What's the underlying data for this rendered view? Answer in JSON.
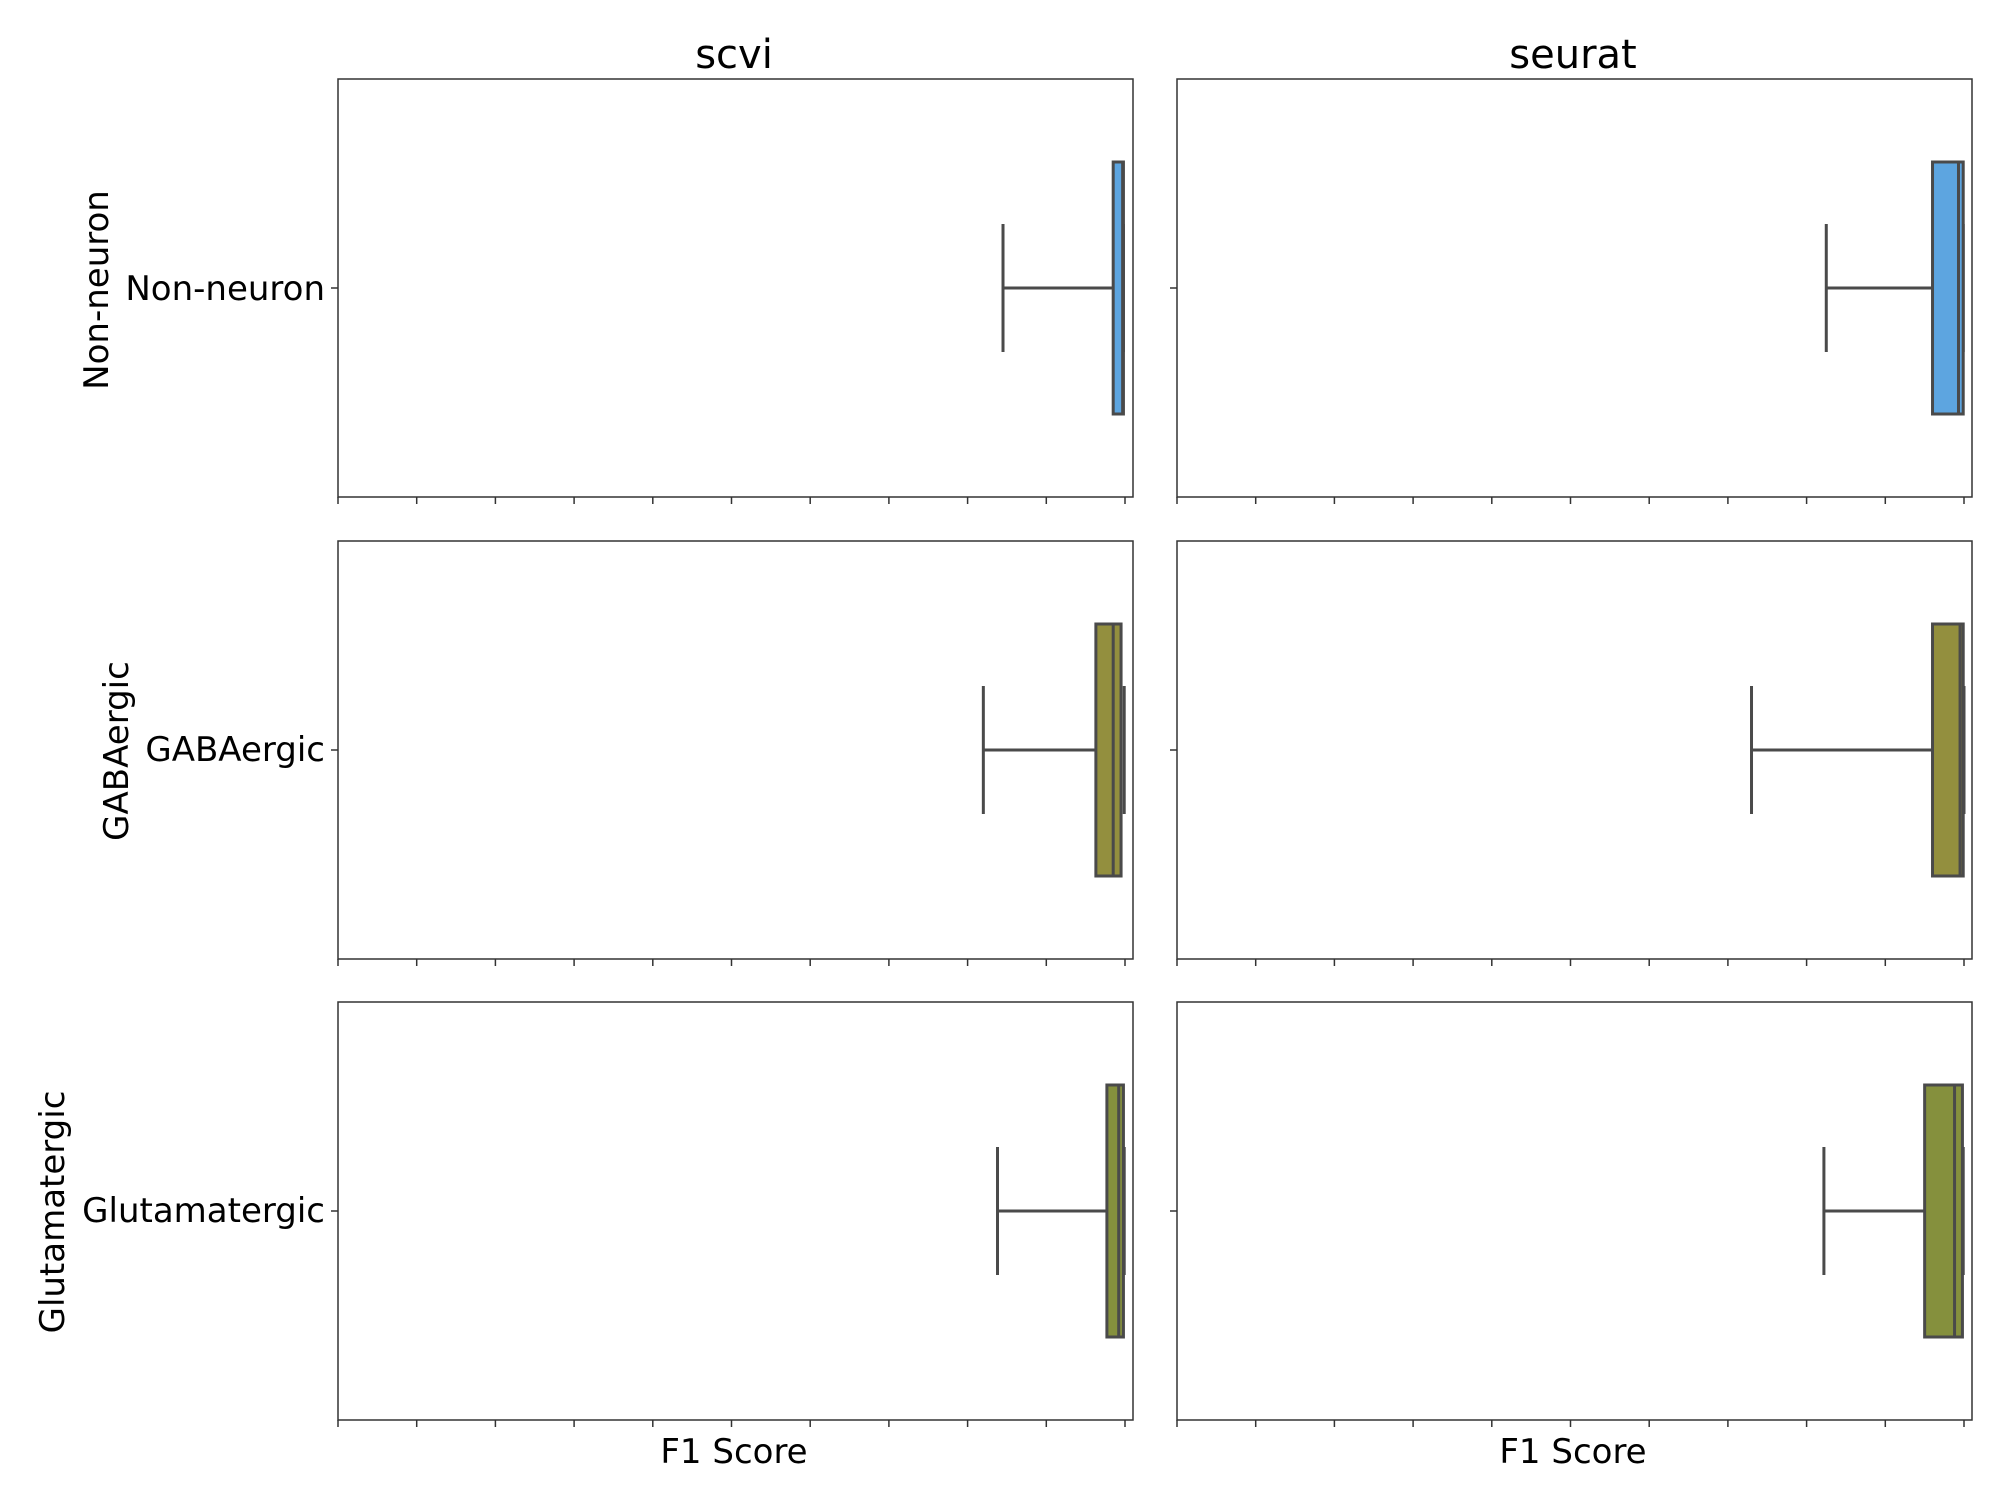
{
  "chart_data": {
    "type": "box",
    "x_range": [
      0.0,
      1.0
    ],
    "xlabel": "F1 Score",
    "columns": [
      "scvi",
      "seurat"
    ],
    "rows": [
      "Non-neuron",
      "GABAergic",
      "Glutamatergic"
    ],
    "panels": [
      {
        "column": "scvi",
        "row": "Non-neuron",
        "category": "Non-neuron",
        "color": "#5DA5E0",
        "whisker_low": 0.845,
        "q1": 0.985,
        "median": 0.997,
        "q3": 0.998,
        "whisker_high": 0.998
      },
      {
        "column": "seurat",
        "row": "Non-neuron",
        "category": "Non-neuron",
        "color": "#5DA5E0",
        "whisker_low": 0.825,
        "q1": 0.96,
        "median": 0.993,
        "q3": 0.999,
        "whisker_high": 0.999
      },
      {
        "column": "scvi",
        "row": "GABAergic",
        "category": "GABAergic",
        "color": "#938F3E",
        "whisker_low": 0.82,
        "q1": 0.963,
        "median": 0.985,
        "q3": 0.995,
        "whisker_high": 0.999
      },
      {
        "column": "seurat",
        "row": "GABAergic",
        "category": "GABAergic",
        "color": "#938F3E",
        "whisker_low": 0.73,
        "q1": 0.96,
        "median": 0.995,
        "q3": 0.999,
        "whisker_high": 1.0
      },
      {
        "column": "scvi",
        "row": "Glutamatergic",
        "category": "Glutamatergic",
        "color": "#85903D",
        "whisker_low": 0.838,
        "q1": 0.977,
        "median": 0.992,
        "q3": 0.998,
        "whisker_high": 0.999
      },
      {
        "column": "seurat",
        "row": "Glutamatergic",
        "category": "Glutamatergic",
        "color": "#85903D",
        "whisker_low": 0.822,
        "q1": 0.95,
        "median": 0.988,
        "q3": 0.998,
        "whisker_high": 0.999
      }
    ]
  }
}
